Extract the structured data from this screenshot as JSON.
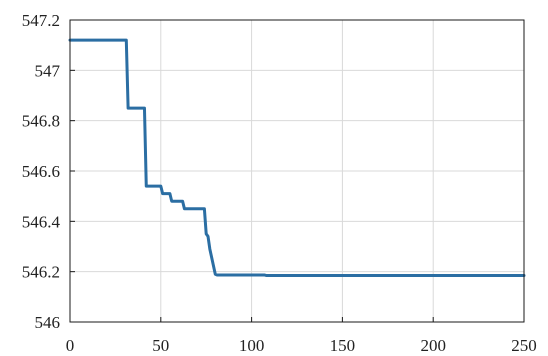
{
  "chart_data": {
    "type": "line",
    "title": "",
    "xlabel": "",
    "ylabel": "",
    "xlim": [
      0,
      250
    ],
    "ylim": [
      546,
      547.2
    ],
    "x_ticks": [
      0,
      50,
      100,
      150,
      200,
      250
    ],
    "x_tick_labels": [
      "0",
      "50",
      "100",
      "150",
      "200",
      "250"
    ],
    "y_ticks": [
      546,
      546.2,
      546.4,
      546.6,
      546.8,
      547,
      547.2
    ],
    "y_tick_labels": [
      "546",
      "546.2",
      "546.4",
      "546.6",
      "546.8",
      "547",
      "547.2"
    ],
    "grid": true,
    "series": [
      {
        "color": "#2b6ea3",
        "x": [
          0,
          31,
          32,
          41,
          42,
          50,
          51,
          55,
          56,
          62,
          63,
          74,
          75,
          76,
          77,
          80,
          81,
          107,
          108,
          250
        ],
        "y": [
          547.12,
          547.12,
          546.85,
          546.85,
          546.54,
          546.54,
          546.51,
          546.51,
          546.48,
          546.48,
          546.45,
          546.45,
          546.35,
          546.34,
          546.29,
          546.19,
          546.187,
          546.187,
          546.185,
          546.185
        ]
      }
    ]
  }
}
